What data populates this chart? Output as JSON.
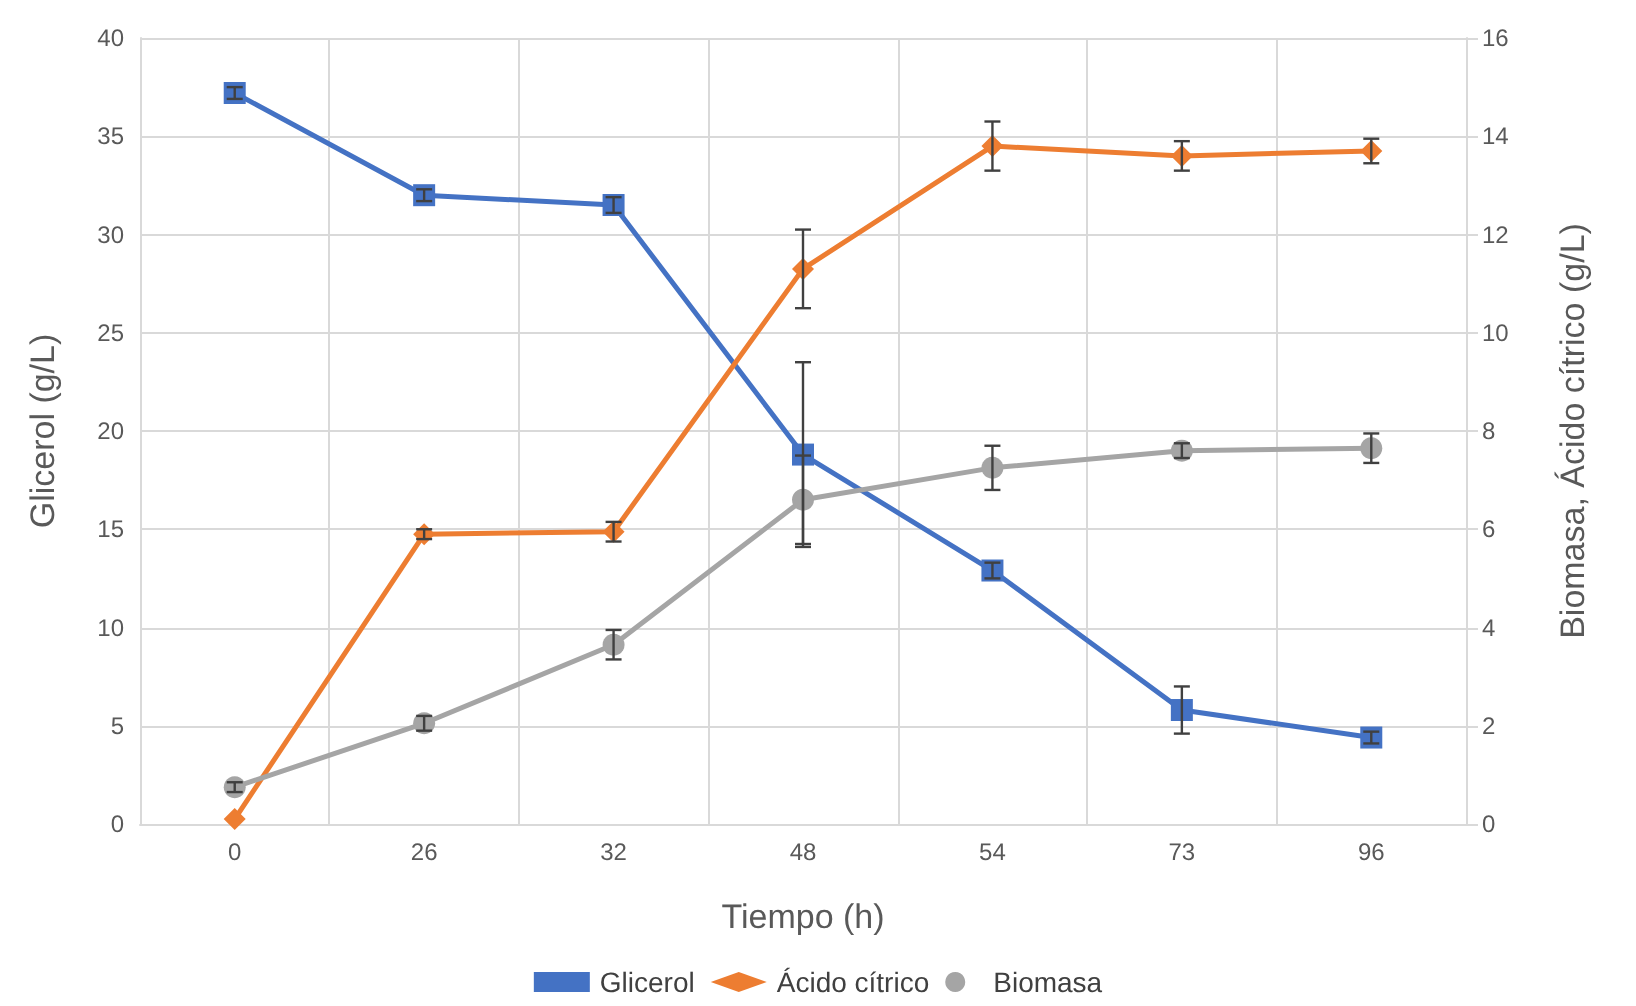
{
  "chart_data": {
    "type": "line",
    "xlabel": "Tiempo (h)",
    "ylabel": "Glicerol (g/L)",
    "y2label": "Biomasa, Ácido cítrico (g/L)",
    "categories": [
      "0",
      "26",
      "32",
      "48",
      "54",
      "73",
      "96"
    ],
    "series": [
      {
        "name": "Glicerol",
        "color": "#4472c4",
        "marker": "square",
        "values": [
          37.2,
          32.0,
          31.5,
          18.8,
          12.9,
          5.8,
          4.4
        ],
        "errors": [
          0.3,
          0.3,
          0.4,
          4.7,
          0.4,
          1.2,
          0.3
        ]
      },
      {
        "name": "Ácido cítrico",
        "color": "#ed7d31",
        "marker": "diamond",
        "axis": "y2",
        "values": [
          0.1,
          5.9,
          5.95,
          11.3,
          13.8,
          13.6,
          13.7
        ],
        "errors": [
          null,
          0.1,
          0.2,
          0.8,
          0.5,
          0.3,
          0.25
        ]
      },
      {
        "name": "Biomasa",
        "color": "#a5a5a5",
        "marker": "circle",
        "axis": "y2",
        "values": [
          0.75,
          2.05,
          3.65,
          6.6,
          7.25,
          7.6,
          7.65
        ],
        "errors": [
          0.1,
          0.15,
          0.3,
          0.9,
          0.45,
          0.15,
          0.3
        ]
      }
    ],
    "ylim": [
      0,
      40
    ],
    "yticks": [
      0,
      5,
      10,
      15,
      20,
      25,
      30,
      35,
      40
    ],
    "y2lim": [
      0,
      16
    ],
    "y2ticks": [
      0,
      2,
      4,
      6,
      8,
      10,
      12,
      14,
      16
    ],
    "grid": true,
    "legend": "bottom",
    "line_style": "solid"
  }
}
